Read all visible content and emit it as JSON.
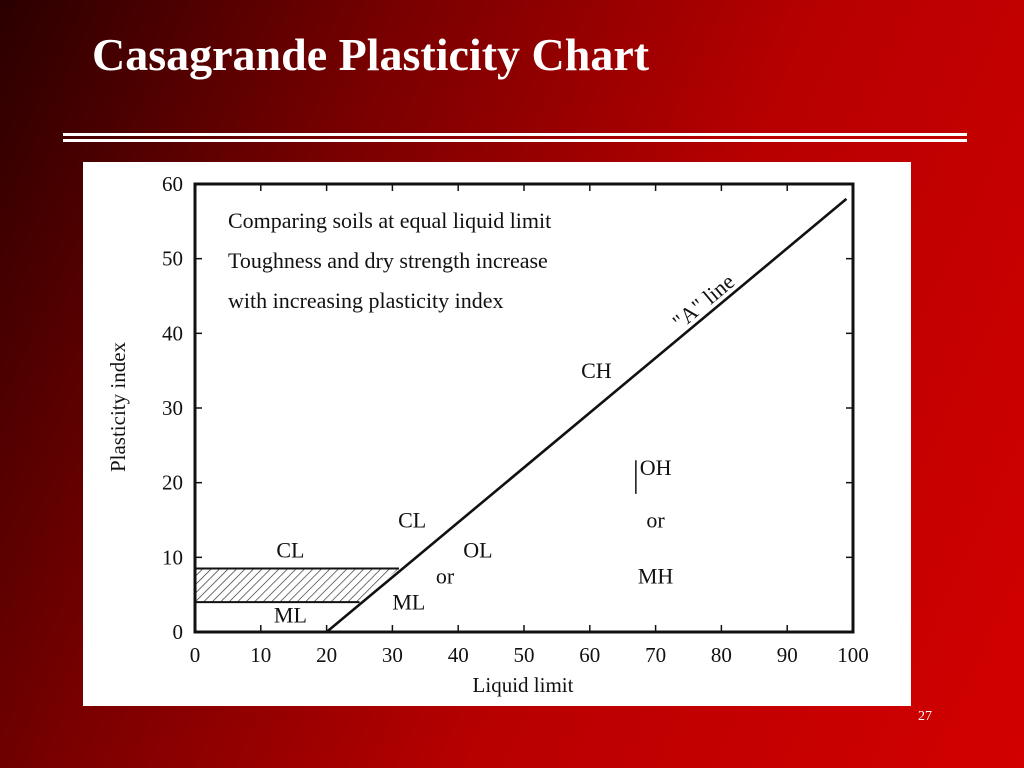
{
  "slide": {
    "title": "Casagrande Plasticity Chart",
    "slide_number": "27"
  },
  "chart_data": {
    "type": "line",
    "title": "",
    "xlabel": "Liquid limit",
    "ylabel": "Plasticity index",
    "xlim": [
      0,
      100
    ],
    "ylim": [
      0,
      60
    ],
    "x_ticks": [
      0,
      10,
      20,
      30,
      40,
      50,
      60,
      70,
      80,
      90,
      100
    ],
    "y_ticks": [
      0,
      10,
      20,
      30,
      40,
      50,
      60
    ],
    "grid": false,
    "series": [
      {
        "name": "\"A\" line",
        "x": [
          20,
          99
        ],
        "y": [
          0,
          58
        ]
      }
    ],
    "hatched_band": {
      "y_range": [
        4,
        8.5
      ],
      "x_end_low": 25,
      "x_end_high": 31
    },
    "region_labels": [
      {
        "text": "CL",
        "x": 14.5,
        "y": 10
      },
      {
        "text": "ML",
        "x": 14.5,
        "y": 1.3
      },
      {
        "text": "CL",
        "x": 33,
        "y": 14
      },
      {
        "text": "OL",
        "x": 43,
        "y": 10
      },
      {
        "text": "or",
        "x": 38,
        "y": 6.5
      },
      {
        "text": "ML",
        "x": 32.5,
        "y": 3
      },
      {
        "text": "CH",
        "x": 61,
        "y": 34
      },
      {
        "text": "OH",
        "x": 70,
        "y": 21
      },
      {
        "text": "or",
        "x": 70,
        "y": 14
      },
      {
        "text": "MH",
        "x": 70,
        "y": 6.5
      }
    ],
    "annotations": [
      "Comparing soils at equal liquid limit",
      "Toughness and dry strength increase",
      "with increasing plasticity index"
    ]
  }
}
